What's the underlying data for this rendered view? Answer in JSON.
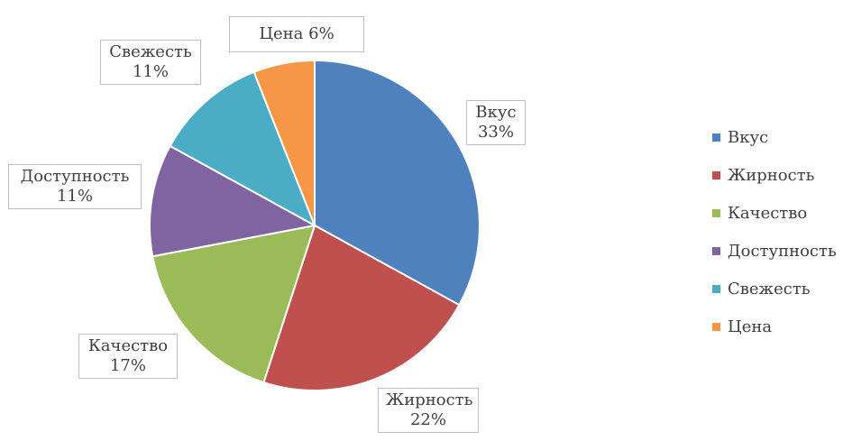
{
  "chart_data": {
    "type": "pie",
    "slices": [
      {
        "name": "Вкус",
        "value": 33,
        "pct_label": "33%",
        "color": "#4f81bd"
      },
      {
        "name": "Жирность",
        "value": 22,
        "pct_label": "22%",
        "color": "#c0504d"
      },
      {
        "name": "Качество",
        "value": 17,
        "pct_label": "17%",
        "color": "#9bbb59"
      },
      {
        "name": "Доступность",
        "value": 11,
        "pct_label": "11%",
        "color": "#8064a2"
      },
      {
        "name": "Свежесть",
        "value": 11,
        "pct_label": "11%",
        "color": "#4bacc6"
      },
      {
        "name": "Цена",
        "value": 6,
        "pct_label": "6%",
        "color": "#f79646"
      }
    ],
    "legend_position": "right"
  }
}
